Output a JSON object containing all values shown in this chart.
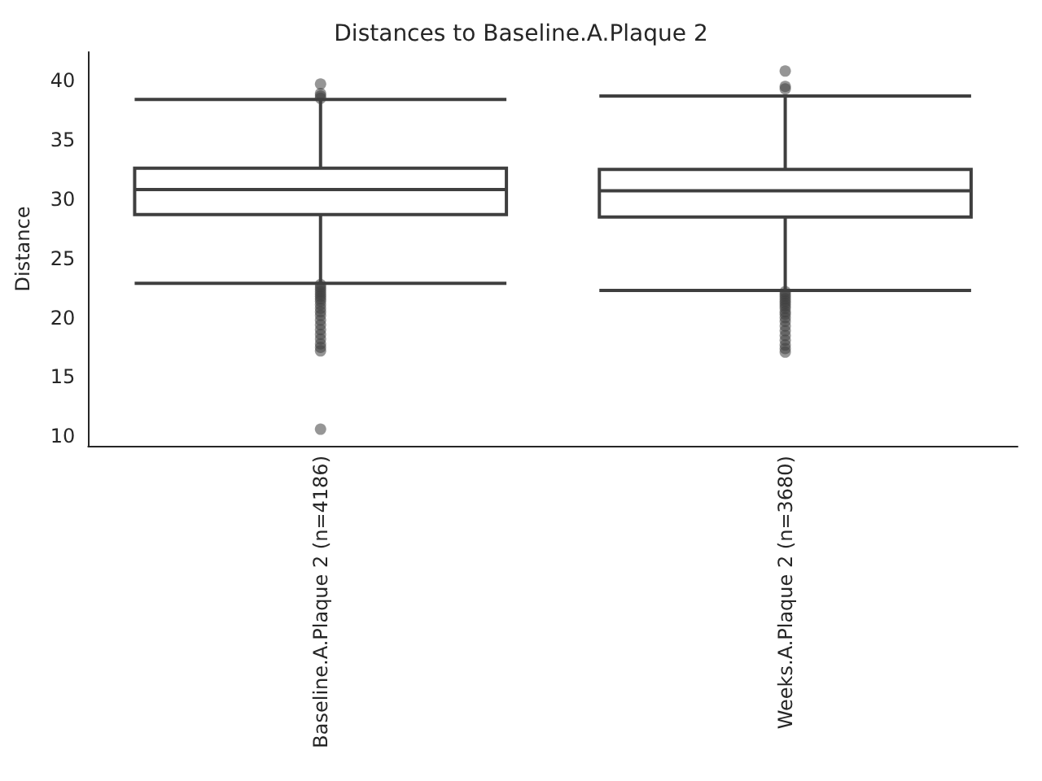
{
  "chart_data": {
    "type": "box",
    "title": "Distances to Baseline.A.Plaque 2",
    "ylabel": "Distance",
    "categories": [
      "Baseline.A.Plaque 2 (n=4186)",
      "Weeks.A.Plaque 2 (n=3680)"
    ],
    "series": [
      {
        "color": "#3f3f3f",
        "boxes": [
          {
            "low": 22.9,
            "q1": 28.7,
            "median": 30.8,
            "q3": 32.6,
            "high": 38.4,
            "outliers": [
              39.7,
              38.9,
              38.7,
              38.5,
              22.8,
              22.6,
              22.4,
              22.2,
              22.0,
              21.8,
              21.6,
              21.4,
              21.1,
              20.8,
              20.5,
              20.2,
              19.8,
              19.4,
              19.0,
              18.6,
              18.2,
              17.8,
              17.5,
              17.2,
              10.6
            ]
          },
          {
            "low": 22.3,
            "q1": 28.5,
            "median": 30.7,
            "q3": 32.5,
            "high": 38.7,
            "outliers": [
              40.8,
              39.5,
              39.3,
              22.2,
              22.0,
              21.8,
              21.6,
              21.4,
              21.2,
              21.0,
              20.8,
              20.5,
              20.3,
              20.0,
              19.7,
              19.3,
              18.9,
              18.5,
              18.1,
              17.7,
              17.4,
              17.1
            ]
          }
        ]
      }
    ],
    "ylim": [
      9.2,
      42.4
    ],
    "yticks": [
      10,
      15,
      20,
      25,
      30,
      35,
      40
    ],
    "grid": false
  }
}
